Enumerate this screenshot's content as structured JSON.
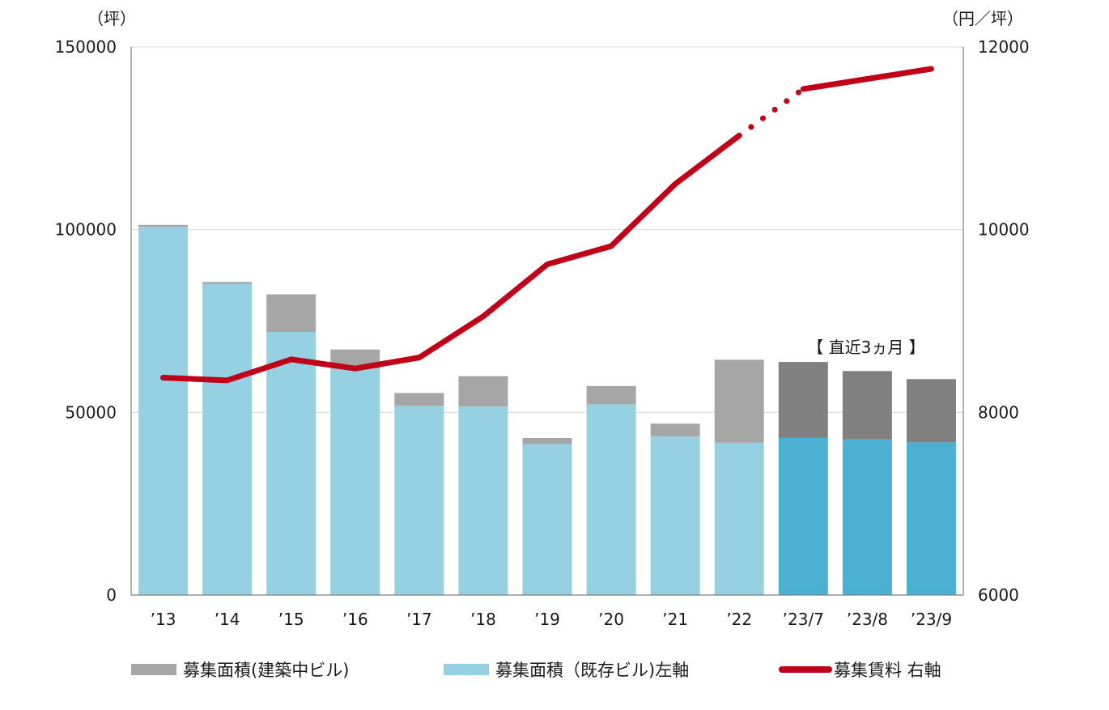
{
  "chart_data": {
    "type": "bar",
    "categories": [
      "’13",
      "’14",
      "’15",
      "’16",
      "’17",
      "’18",
      "’19",
      "’20",
      "’21",
      "’22",
      "’23/7",
      "’23/8",
      "’23/9"
    ],
    "series": [
      {
        "name": "募集面積（既存ビル）左軸",
        "type": "bar",
        "axis": "left",
        "color": "#95d1e3",
        "recent_color": "#4bb0d2",
        "values": [
          100800,
          85200,
          72000,
          62000,
          51800,
          51600,
          41300,
          52200,
          43400,
          41700,
          43000,
          42600,
          41800
        ]
      },
      {
        "name": "募集面積（建築中ビル）",
        "type": "bar",
        "axis": "left",
        "color": "#a6a6a6",
        "recent_color": "#808080",
        "values": [
          500,
          500,
          10300,
          5200,
          3500,
          8300,
          1700,
          5000,
          3500,
          22700,
          20800,
          18700,
          17300
        ]
      },
      {
        "name": "募集賃料 右軸",
        "type": "line",
        "axis": "right",
        "color": "#c00018",
        "values": [
          8380,
          8350,
          8580,
          8480,
          8600,
          9050,
          9620,
          9820,
          10500,
          11030,
          11540,
          11650,
          11760
        ],
        "dotted_segment": [
          "’22",
          "’23/7"
        ]
      }
    ],
    "recent_categories": [
      "’23/7",
      "’23/8",
      "’23/9"
    ],
    "y_left": {
      "unit_label": "（坪）",
      "ylim": [
        0,
        150000
      ],
      "ticks": [
        "0",
        "50000",
        "100000",
        "150000"
      ]
    },
    "y_right": {
      "unit_label": "（円／坪）",
      "ylim": [
        6000,
        12000
      ],
      "ticks": [
        "6000",
        "8000",
        "10000",
        "12000"
      ]
    },
    "annotation": "【 直近3ヵ月 】",
    "grid": true,
    "legend_position": "bottom"
  },
  "legend": {
    "construction": "募集面積(建築中ビル)",
    "existing": "募集面積（既存ビル)左軸",
    "rent": "募集賃料 右軸"
  },
  "colors": {
    "existing": "#95d1e3",
    "existing_recent": "#4bb0d2",
    "construction": "#a6a6a6",
    "construction_recent": "#808080",
    "rent": "#c00018",
    "grid": "#d9d9d9",
    "axis": "#7f7f7f"
  }
}
